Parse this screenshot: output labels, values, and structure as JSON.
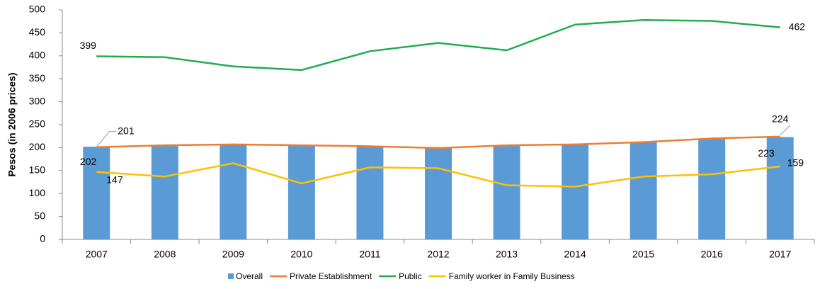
{
  "chart_data": {
    "type": "bar_line",
    "y_label": "Pesos (in 2006 prices)",
    "categories": [
      "2007",
      "2008",
      "2009",
      "2010",
      "2011",
      "2012",
      "2013",
      "2014",
      "2015",
      "2016",
      "2017"
    ],
    "series": [
      {
        "name": "Overall",
        "type": "bar",
        "color": "#5b9bd5",
        "values": [
          202,
          205,
          207,
          205,
          203,
          200,
          205,
          207,
          212,
          219,
          223
        ]
      },
      {
        "name": "Private Establishment",
        "type": "line",
        "color": "#ed7d31",
        "values": [
          201,
          205,
          207,
          205,
          203,
          199,
          205,
          207,
          212,
          220,
          224
        ]
      },
      {
        "name": "Public",
        "type": "line",
        "color": "#1fae4b",
        "values": [
          399,
          397,
          377,
          369,
          410,
          428,
          412,
          468,
          478,
          476,
          462
        ]
      },
      {
        "name": "Family worker in Family Business",
        "type": "line",
        "color": "#ffc000",
        "values": [
          147,
          137,
          166,
          122,
          157,
          155,
          118,
          115,
          137,
          142,
          159
        ]
      }
    ],
    "ylim": [
      0,
      500
    ],
    "yticks": [
      0,
      50,
      100,
      150,
      200,
      250,
      300,
      350,
      400,
      450,
      500
    ]
  }
}
